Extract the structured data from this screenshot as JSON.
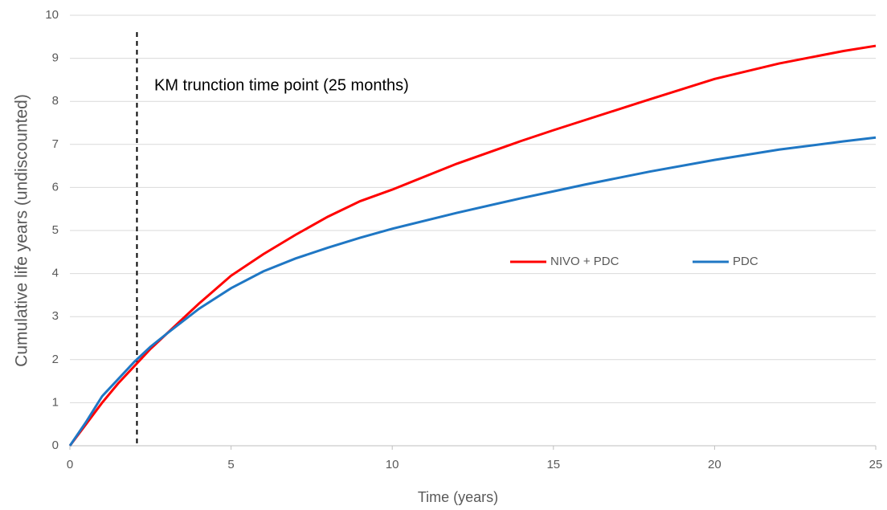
{
  "chart_data": {
    "type": "line",
    "x_label": "Time (years)",
    "y_label": "Cumulative life years (undiscounted)",
    "x": [
      0,
      0.5,
      1,
      1.5,
      2,
      2.5,
      3,
      4,
      5,
      6,
      7,
      8,
      9,
      10,
      12,
      14,
      15,
      16,
      18,
      20,
      22,
      24,
      25
    ],
    "series": [
      {
        "name": "NIVO + PDC",
        "color": "#ff0000",
        "values": [
          0,
          0.5,
          1.0,
          1.45,
          1.85,
          2.25,
          2.6,
          3.3,
          3.95,
          4.45,
          4.9,
          5.32,
          5.68,
          5.95,
          6.55,
          7.08,
          7.33,
          7.57,
          8.05,
          8.52,
          8.88,
          9.17,
          9.29
        ]
      },
      {
        "name": "PDC",
        "color": "#1f77c4",
        "values": [
          0,
          0.55,
          1.15,
          1.55,
          1.95,
          2.3,
          2.6,
          3.18,
          3.66,
          4.05,
          4.35,
          4.6,
          4.83,
          5.04,
          5.41,
          5.75,
          5.91,
          6.07,
          6.37,
          6.64,
          6.88,
          7.07,
          7.16
        ]
      }
    ],
    "reference_line": {
      "x": 2.08,
      "label": "KM trunction time point (25 months)"
    },
    "xlim": [
      0,
      25
    ],
    "xticks": [
      0,
      5,
      10,
      15,
      20,
      25
    ],
    "ylim": [
      0,
      10
    ],
    "yticks": [
      0,
      1,
      2,
      3,
      4,
      5,
      6,
      7,
      8,
      9,
      10
    ],
    "grid": true
  }
}
